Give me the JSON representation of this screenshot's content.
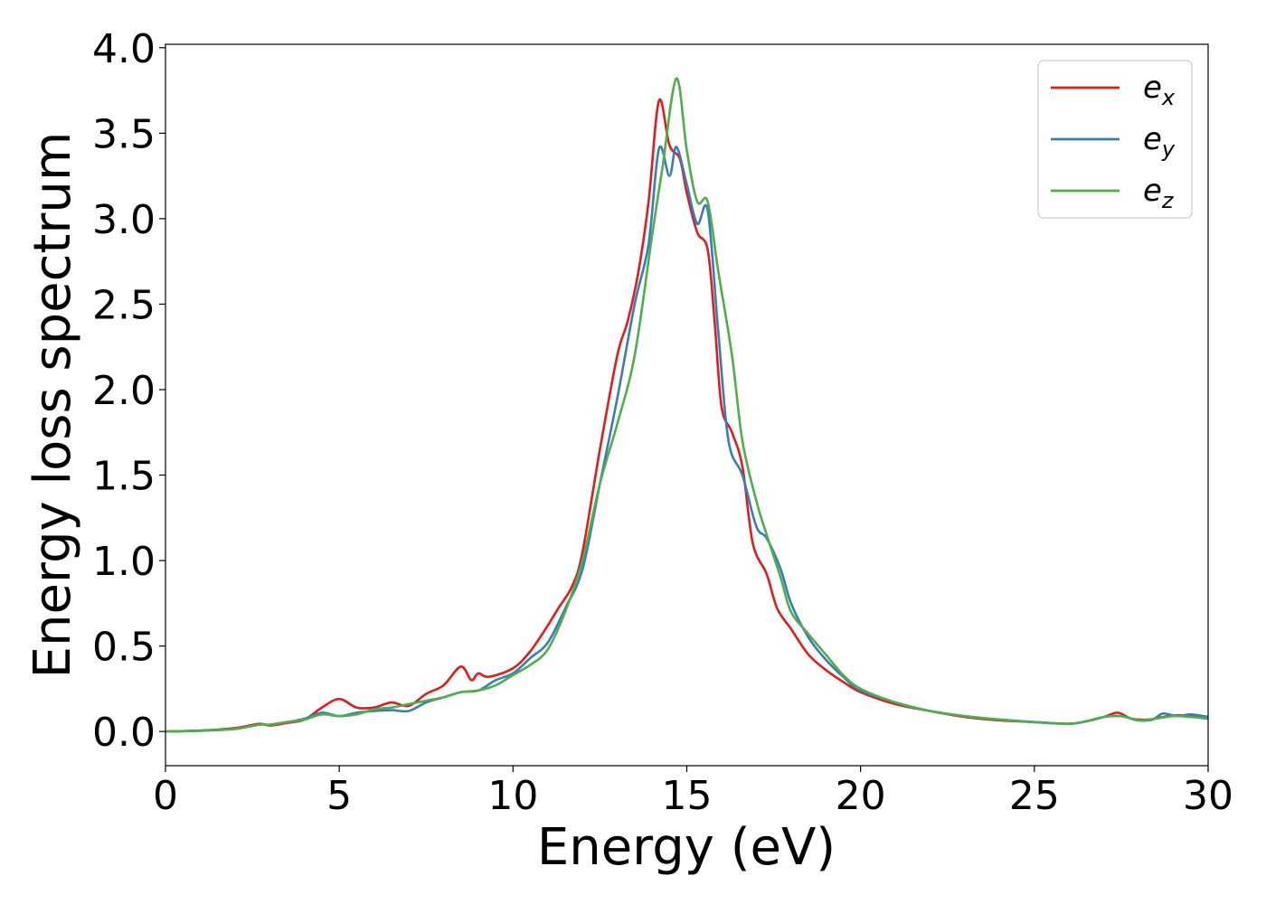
{
  "chart_data": {
    "type": "line",
    "title": "",
    "xlabel": "Energy (eV)",
    "ylabel": "Energy loss spectrum",
    "xlim": [
      0,
      30
    ],
    "ylim": [
      -0.2,
      4.02
    ],
    "xticks": [
      0,
      5,
      10,
      15,
      20,
      25,
      30
    ],
    "xtick_labels": [
      "0",
      "5",
      "10",
      "15",
      "20",
      "25",
      "30"
    ],
    "yticks": [
      0.0,
      0.5,
      1.0,
      1.5,
      2.0,
      2.5,
      3.0,
      3.5,
      4.0
    ],
    "ytick_labels": [
      "0.0",
      "0.5",
      "1.0",
      "1.5",
      "2.0",
      "2.5",
      "3.0",
      "3.5",
      "4.0"
    ],
    "grid": false,
    "legend_position": "top-right",
    "series": [
      {
        "name": "e_x",
        "label_main": "e",
        "label_sub": "x",
        "color": "#e41a1c",
        "points": [
          [
            0,
            0
          ],
          [
            1,
            0.005
          ],
          [
            2,
            0.02
          ],
          [
            2.7,
            0.045
          ],
          [
            3,
            0.035
          ],
          [
            3.5,
            0.05
          ],
          [
            4,
            0.07
          ],
          [
            4.5,
            0.14
          ],
          [
            5,
            0.19
          ],
          [
            5.5,
            0.14
          ],
          [
            6,
            0.14
          ],
          [
            6.5,
            0.17
          ],
          [
            7,
            0.15
          ],
          [
            7.5,
            0.22
          ],
          [
            8,
            0.27
          ],
          [
            8.5,
            0.38
          ],
          [
            8.8,
            0.3
          ],
          [
            9,
            0.34
          ],
          [
            9.3,
            0.32
          ],
          [
            10,
            0.37
          ],
          [
            10.5,
            0.47
          ],
          [
            11,
            0.62
          ],
          [
            11.3,
            0.72
          ],
          [
            11.7,
            0.85
          ],
          [
            12,
            1.05
          ],
          [
            12.5,
            1.65
          ],
          [
            13,
            2.2
          ],
          [
            13.3,
            2.4
          ],
          [
            13.6,
            2.68
          ],
          [
            13.9,
            3.1
          ],
          [
            14.2,
            3.69
          ],
          [
            14.5,
            3.43
          ],
          [
            14.8,
            3.35
          ],
          [
            15,
            3.15
          ],
          [
            15.3,
            2.92
          ],
          [
            15.6,
            2.82
          ],
          [
            15.8,
            2.4
          ],
          [
            16,
            1.9
          ],
          [
            16.3,
            1.75
          ],
          [
            16.6,
            1.55
          ],
          [
            16.9,
            1.1
          ],
          [
            17.3,
            0.92
          ],
          [
            17.6,
            0.72
          ],
          [
            18,
            0.6
          ],
          [
            18.5,
            0.45
          ],
          [
            19,
            0.36
          ],
          [
            19.5,
            0.29
          ],
          [
            20,
            0.23
          ],
          [
            21,
            0.16
          ],
          [
            22,
            0.12
          ],
          [
            23,
            0.085
          ],
          [
            24,
            0.065
          ],
          [
            25,
            0.055
          ],
          [
            26,
            0.045
          ],
          [
            26.5,
            0.06
          ],
          [
            27,
            0.085
          ],
          [
            27.4,
            0.11
          ],
          [
            27.8,
            0.075
          ],
          [
            28.3,
            0.07
          ],
          [
            28.7,
            0.085
          ],
          [
            29.2,
            0.095
          ],
          [
            30,
            0.075
          ]
        ]
      },
      {
        "name": "e_y",
        "label_main": "e",
        "label_sub": "y",
        "color": "#377eb8",
        "points": [
          [
            0,
            0
          ],
          [
            1,
            0.005
          ],
          [
            2,
            0.015
          ],
          [
            2.7,
            0.04
          ],
          [
            3,
            0.04
          ],
          [
            3.5,
            0.055
          ],
          [
            4,
            0.075
          ],
          [
            4.5,
            0.11
          ],
          [
            5,
            0.09
          ],
          [
            5.5,
            0.11
          ],
          [
            6,
            0.12
          ],
          [
            6.5,
            0.125
          ],
          [
            7,
            0.12
          ],
          [
            7.5,
            0.17
          ],
          [
            8,
            0.2
          ],
          [
            8.5,
            0.23
          ],
          [
            9,
            0.24
          ],
          [
            9.5,
            0.3
          ],
          [
            10,
            0.34
          ],
          [
            10.5,
            0.43
          ],
          [
            11,
            0.52
          ],
          [
            11.5,
            0.72
          ],
          [
            12,
            0.95
          ],
          [
            12.5,
            1.45
          ],
          [
            13,
            1.95
          ],
          [
            13.5,
            2.5
          ],
          [
            13.9,
            2.85
          ],
          [
            14.2,
            3.41
          ],
          [
            14.5,
            3.25
          ],
          [
            14.7,
            3.42
          ],
          [
            15,
            3.2
          ],
          [
            15.3,
            2.97
          ],
          [
            15.6,
            3.05
          ],
          [
            15.9,
            2.35
          ],
          [
            16.2,
            1.7
          ],
          [
            16.6,
            1.5
          ],
          [
            17,
            1.2
          ],
          [
            17.3,
            1.13
          ],
          [
            17.7,
            0.95
          ],
          [
            18,
            0.75
          ],
          [
            18.5,
            0.55
          ],
          [
            19,
            0.42
          ],
          [
            19.5,
            0.32
          ],
          [
            20,
            0.24
          ],
          [
            21,
            0.17
          ],
          [
            22,
            0.12
          ],
          [
            23,
            0.09
          ],
          [
            24,
            0.07
          ],
          [
            25,
            0.055
          ],
          [
            26,
            0.045
          ],
          [
            26.5,
            0.06
          ],
          [
            27,
            0.085
          ],
          [
            27.5,
            0.09
          ],
          [
            28,
            0.065
          ],
          [
            28.4,
            0.07
          ],
          [
            28.7,
            0.105
          ],
          [
            29.1,
            0.09
          ],
          [
            29.5,
            0.1
          ],
          [
            30,
            0.085
          ]
        ]
      },
      {
        "name": "e_z",
        "label_main": "e",
        "label_sub": "z",
        "color": "#4daf4a",
        "points": [
          [
            0,
            0
          ],
          [
            1,
            0.004
          ],
          [
            2,
            0.015
          ],
          [
            2.7,
            0.04
          ],
          [
            3,
            0.04
          ],
          [
            3.5,
            0.055
          ],
          [
            4,
            0.07
          ],
          [
            4.5,
            0.1
          ],
          [
            5,
            0.09
          ],
          [
            5.5,
            0.1
          ],
          [
            6,
            0.13
          ],
          [
            6.5,
            0.14
          ],
          [
            7,
            0.16
          ],
          [
            7.5,
            0.18
          ],
          [
            8,
            0.2
          ],
          [
            8.5,
            0.23
          ],
          [
            9,
            0.24
          ],
          [
            9.5,
            0.27
          ],
          [
            10,
            0.33
          ],
          [
            10.5,
            0.39
          ],
          [
            11,
            0.48
          ],
          [
            11.5,
            0.7
          ],
          [
            12,
            1.0
          ],
          [
            12.5,
            1.45
          ],
          [
            13,
            1.8
          ],
          [
            13.5,
            2.2
          ],
          [
            14,
            2.9
          ],
          [
            14.3,
            3.3
          ],
          [
            14.7,
            3.82
          ],
          [
            15,
            3.4
          ],
          [
            15.3,
            3.1
          ],
          [
            15.6,
            3.1
          ],
          [
            15.9,
            2.7
          ],
          [
            16.3,
            2.2
          ],
          [
            16.6,
            1.7
          ],
          [
            17,
            1.35
          ],
          [
            17.3,
            1.15
          ],
          [
            17.7,
            0.9
          ],
          [
            18,
            0.7
          ],
          [
            18.5,
            0.57
          ],
          [
            19,
            0.45
          ],
          [
            19.5,
            0.33
          ],
          [
            20,
            0.25
          ],
          [
            21,
            0.17
          ],
          [
            22,
            0.12
          ],
          [
            23,
            0.09
          ],
          [
            24,
            0.07
          ],
          [
            25,
            0.055
          ],
          [
            26,
            0.045
          ],
          [
            26.5,
            0.06
          ],
          [
            27,
            0.085
          ],
          [
            27.5,
            0.09
          ],
          [
            28,
            0.065
          ],
          [
            28.5,
            0.075
          ],
          [
            29,
            0.09
          ],
          [
            29.5,
            0.085
          ],
          [
            30,
            0.075
          ]
        ]
      }
    ]
  }
}
